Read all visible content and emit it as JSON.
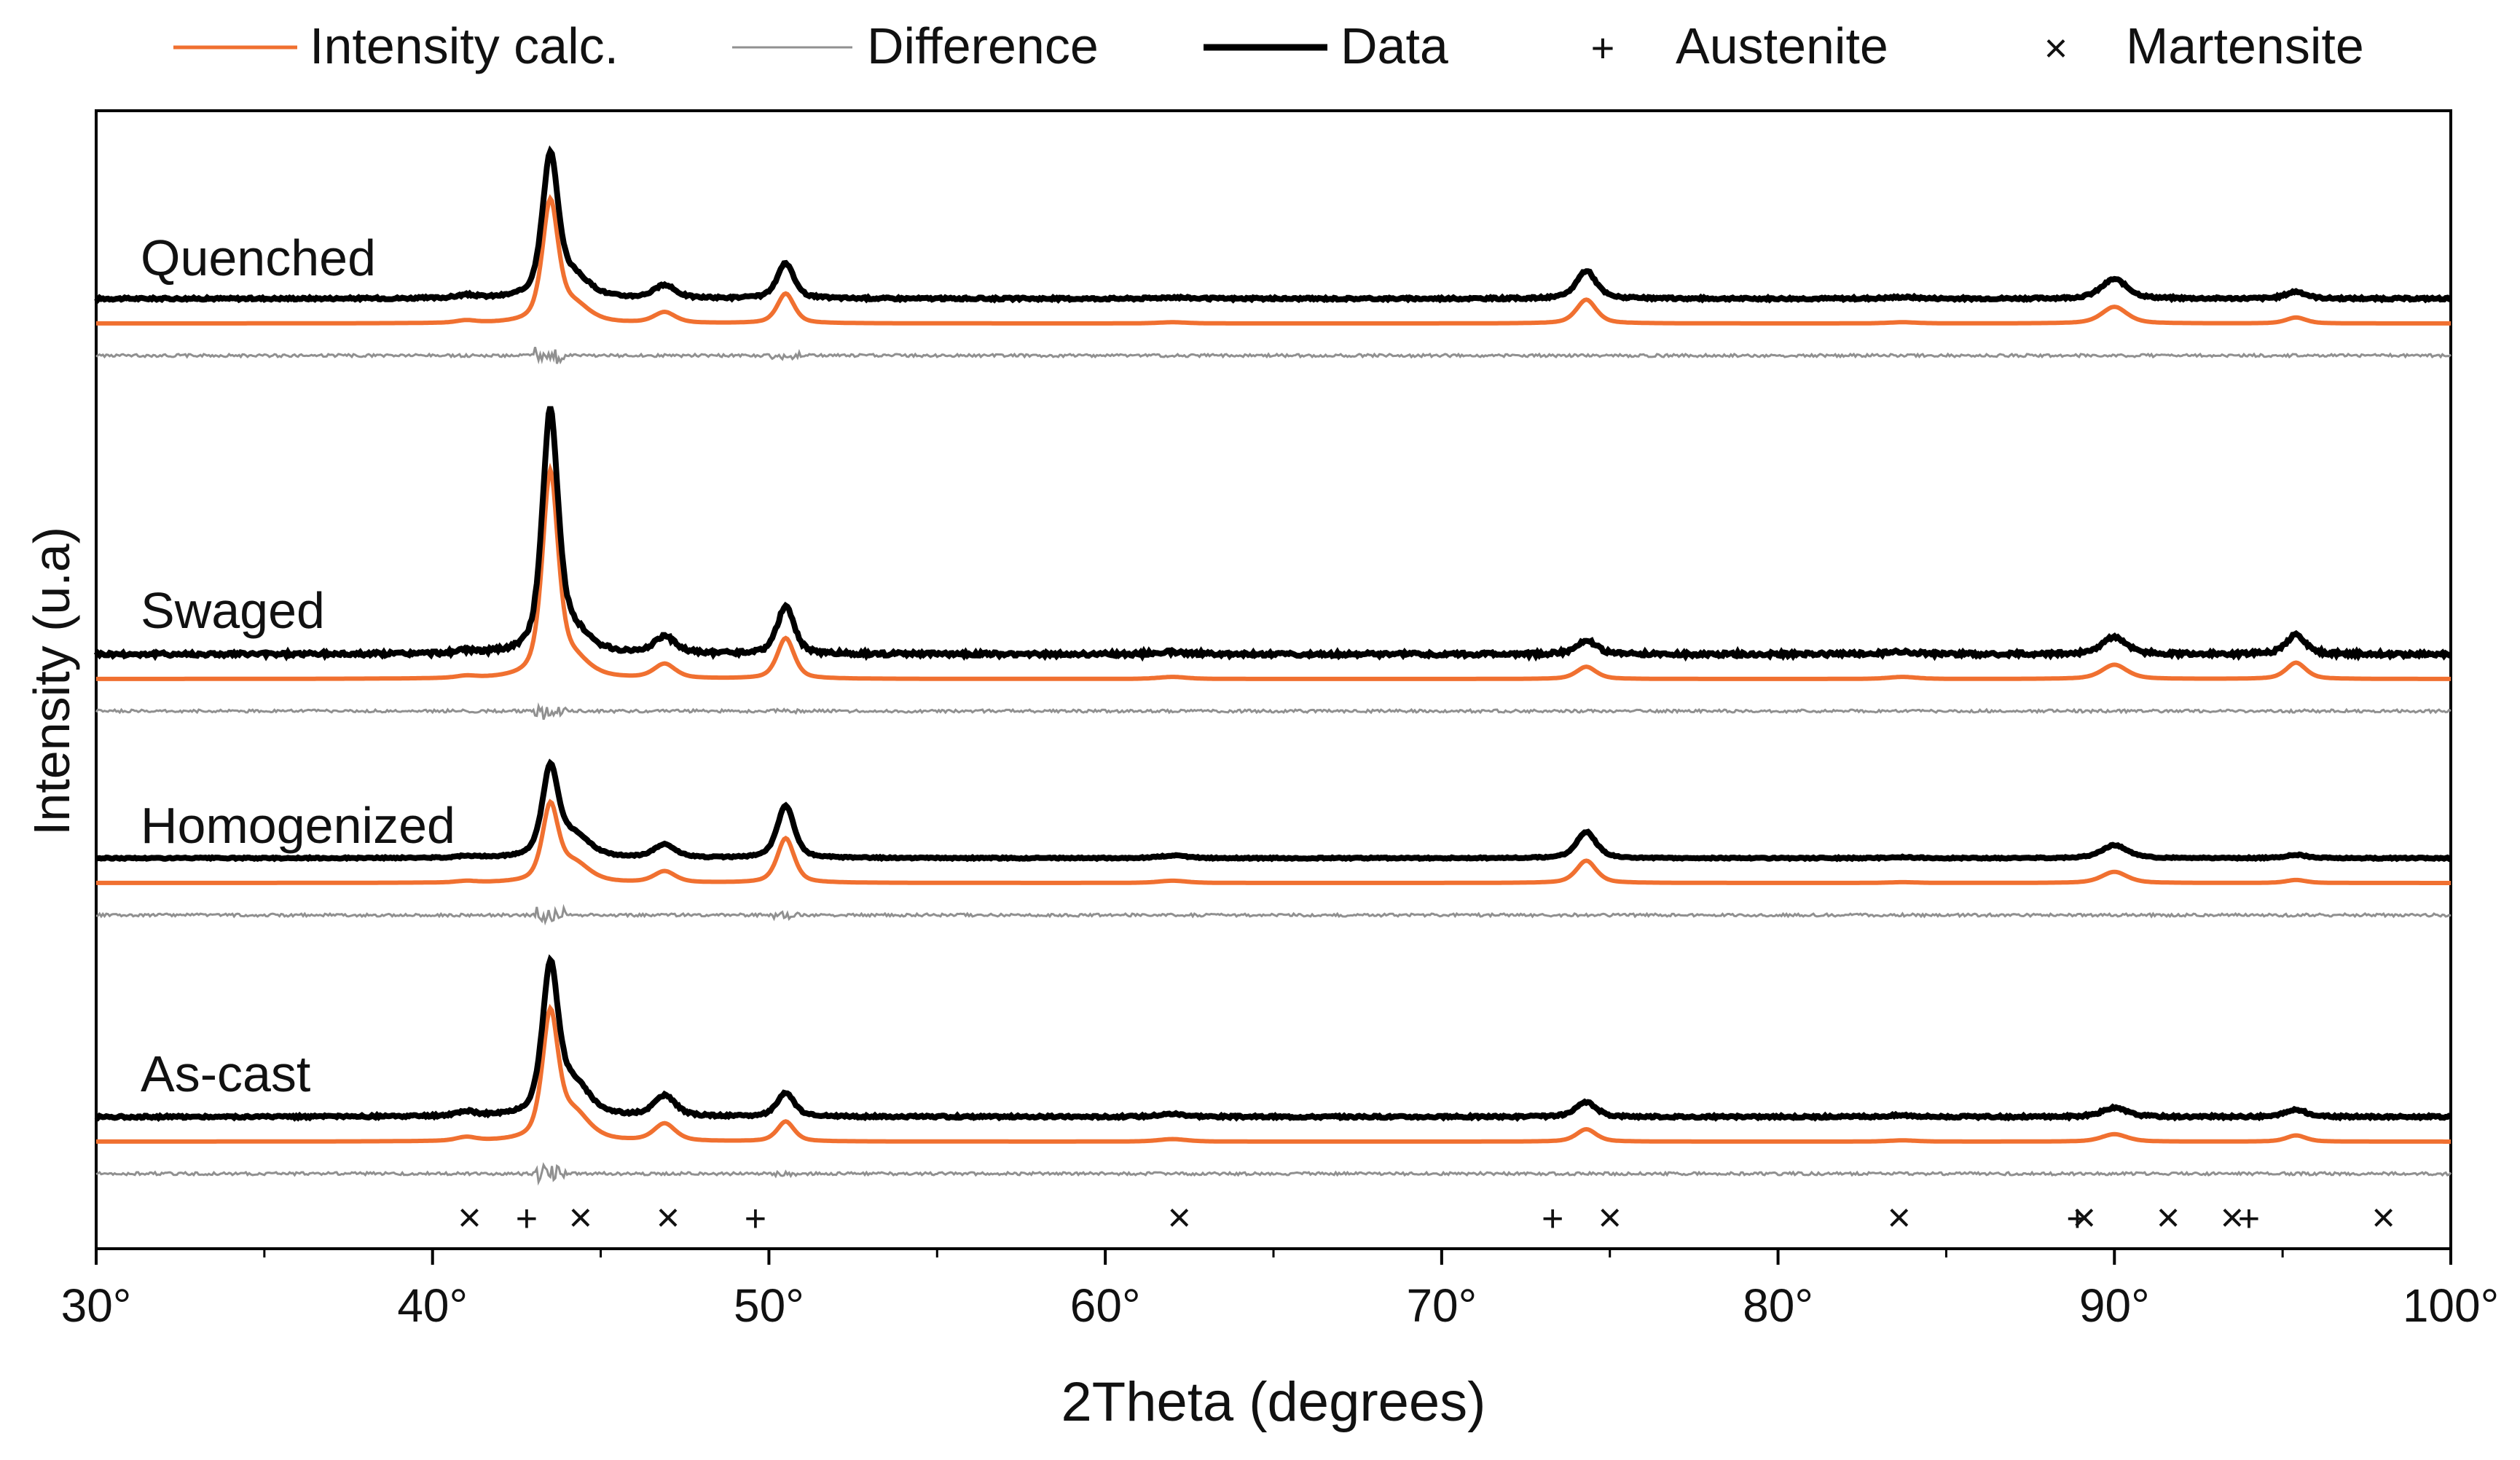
{
  "chart_data": {
    "type": "line",
    "xlabel": "2Theta (degrees)",
    "ylabel": "Intensity (u.a)",
    "xlim": [
      30,
      100
    ],
    "x_tick_labels": [
      "30°",
      "40°",
      "50°",
      "60°",
      "70°",
      "80°",
      "90°",
      "100°"
    ],
    "legend": {
      "placement": "top",
      "entries": [
        {
          "label": "Intensity calc.",
          "kind": "line",
          "color": "#f07030"
        },
        {
          "label": "Difference",
          "kind": "line",
          "color": "#909090"
        },
        {
          "label": "Data",
          "kind": "line",
          "color": "#000000"
        },
        {
          "label": "Austenite",
          "kind": "marker",
          "symbol": "+"
        },
        {
          "label": "Martensite",
          "kind": "marker",
          "symbol": "×"
        }
      ]
    },
    "colors": {
      "data": "#000000",
      "calc": "#f07030",
      "diff": "#909090"
    },
    "peaks_2theta": [
      41.0,
      43.5,
      44.2,
      46.9,
      50.5,
      62.0,
      74.3,
      83.7,
      90.0,
      95.4
    ],
    "samples": [
      {
        "name": "Quenched",
        "relative_intensity": [
          0.02,
          1.0,
          0.14,
          0.09,
          0.25,
          0.01,
          0.2,
          0.01,
          0.14,
          0.05
        ]
      },
      {
        "name": "Swaged",
        "relative_intensity": [
          0.01,
          1.0,
          0.08,
          0.07,
          0.2,
          0.01,
          0.06,
          0.01,
          0.07,
          0.08
        ]
      },
      {
        "name": "Homogenized",
        "relative_intensity": [
          0.02,
          1.0,
          0.25,
          0.15,
          0.6,
          0.03,
          0.3,
          0.01,
          0.15,
          0.04
        ]
      },
      {
        "name": "As-cast",
        "relative_intensity": [
          0.03,
          1.0,
          0.21,
          0.14,
          0.16,
          0.02,
          0.1,
          0.01,
          0.06,
          0.05
        ]
      }
    ],
    "phase_markers": {
      "austenite": [
        42.8,
        49.6,
        73.3,
        88.9,
        94.0
      ],
      "martensite": [
        41.1,
        44.4,
        47.0,
        62.2,
        75.0,
        83.6,
        89.1,
        91.6,
        93.5,
        98.0
      ]
    }
  }
}
